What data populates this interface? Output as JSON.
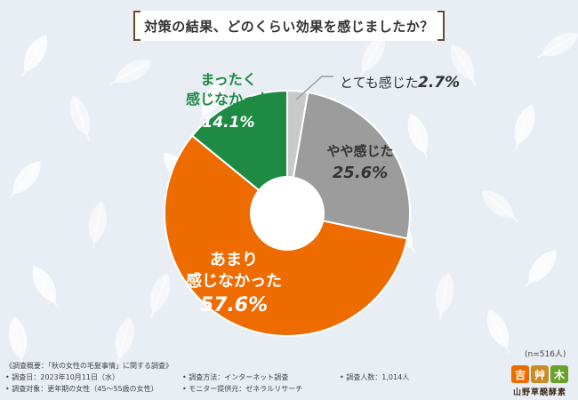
{
  "title": "対策の結果、どのくらい効果を感じましたか？",
  "note_n": "(n=516人)",
  "footer": {
    "summary": "《調査概要：「秋の女性の毛髪事情」に関する調査》",
    "date": "• 調査日：2023年10月11日（水）",
    "target": "• 調査対象：更年期の女性（45～55歳の女性）",
    "method": "• 調査方法：インターネット調査",
    "provider": "• モニター提供元：ゼネラルリサーチ",
    "count": "• 調査人数：1,014人"
  },
  "logo": {
    "icons": [
      "吉",
      "艸",
      "木"
    ],
    "name": "山野草醗酵素"
  },
  "colors": {
    "background": "#e9eef4",
    "leaf": "#ffffff",
    "green": "#1e8a44",
    "light_gray": "#c9c9c9",
    "gray": "#9c9c9c",
    "orange": "#ee6b00",
    "title_border": "#6b4b2e"
  },
  "chart_data": {
    "type": "pie",
    "title": "対策の結果、どのくらい効果を感じましたか？",
    "donut": true,
    "n": 516,
    "slices": [
      {
        "label": "とても感じた",
        "value": 2.7,
        "display": "2.7%",
        "color": "#c9c9c9"
      },
      {
        "label": "やや感じた",
        "value": 25.6,
        "display": "25.6%",
        "color": "#9c9c9c"
      },
      {
        "label": "あまり\n感じなかった",
        "value": 57.6,
        "display": "57.6%",
        "color": "#ee6b00"
      },
      {
        "label": "まったく\n感じなかった",
        "value": 14.1,
        "display": "14.1%",
        "color": "#1e8a44"
      }
    ]
  }
}
